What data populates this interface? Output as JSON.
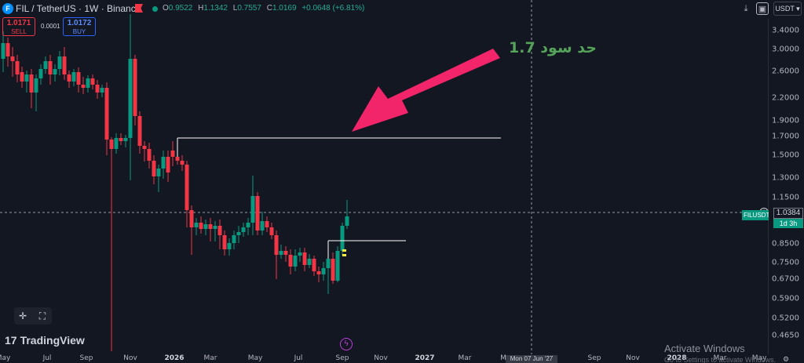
{
  "header": {
    "symbol_icon": "F",
    "symbol": "FIL / TetherUS · 1W · Binance",
    "ohlc": [
      {
        "key": "O",
        "value": "0.9522"
      },
      {
        "key": "H",
        "value": "1.1342"
      },
      {
        "key": "L",
        "value": "0.7557"
      },
      {
        "key": "C",
        "value": "1.0169"
      }
    ],
    "change": "+0.0648 (+6.81%)"
  },
  "trade": {
    "sell_price": "1.0171",
    "sell_label": "SELL",
    "spread": "0.0001",
    "buy_price": "1.0172",
    "buy_label": "BUY"
  },
  "toolbar": {
    "currency": "USDT",
    "icons": [
      "dropdown-icon",
      "camera-icon"
    ]
  },
  "annotation": {
    "text": "حد سود 1.7",
    "color": "#56a25b",
    "arrow_color": "#f2246a"
  },
  "price_scale": {
    "ticks": [
      "3.4000",
      "3.0000",
      "2.6000",
      "2.2000",
      "1.9000",
      "1.7000",
      "1.5000",
      "1.3000",
      "1.1500",
      "1.0384",
      "0.8500",
      "0.7500",
      "0.6700",
      "0.5900",
      "0.5200",
      "0.4650"
    ],
    "current_price": "1.0384",
    "current_tag": "FILUSDT",
    "countdown": "1d 3h"
  },
  "time_axis": {
    "ticks": [
      {
        "label": "May",
        "bold": false
      },
      {
        "label": "Jul",
        "bold": false
      },
      {
        "label": "Sep",
        "bold": false
      },
      {
        "label": "Nov",
        "bold": false
      },
      {
        "label": "2026",
        "bold": true
      },
      {
        "label": "Mar",
        "bold": false
      },
      {
        "label": "May",
        "bold": false
      },
      {
        "label": "Jul",
        "bold": false
      },
      {
        "label": "Sep",
        "bold": false
      },
      {
        "label": "Nov",
        "bold": false
      },
      {
        "label": "2027",
        "bold": true
      },
      {
        "label": "Mar",
        "bold": false
      },
      {
        "label": "M",
        "bold": false
      },
      {
        "label": "Sep",
        "bold": false
      },
      {
        "label": "Nov",
        "bold": false
      },
      {
        "label": "2028",
        "bold": true
      },
      {
        "label": "Mar",
        "bold": false
      },
      {
        "label": "May",
        "bold": false
      }
    ],
    "crosshair_date": "Mon 07 Jun '27"
  },
  "branding": {
    "logo": "TradingView",
    "logo_mark": "17"
  },
  "watermark": {
    "title": "Activate Windows",
    "subtitle": "Go to Settings to activate Windows."
  },
  "colors": {
    "bull": "#089981",
    "bear": "#f23645",
    "background": "#131722",
    "level_line": "#ffffff"
  }
}
